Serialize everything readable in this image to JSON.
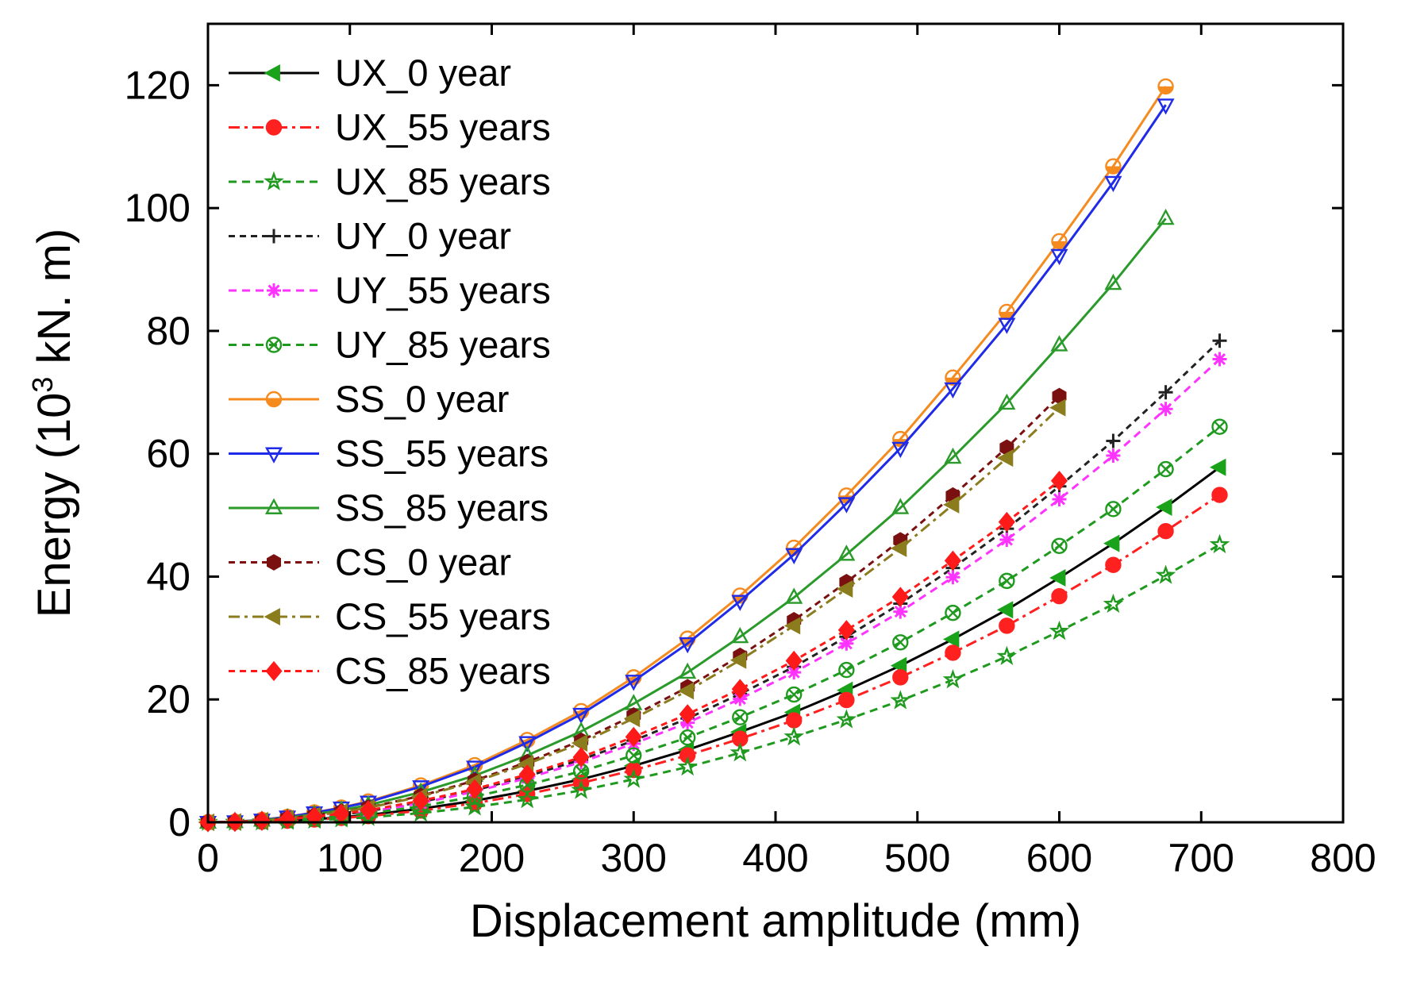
{
  "chart_data": {
    "type": "line",
    "xlabel": "Displacement amplitude (mm)",
    "ylabel_main": "Energy (10",
    "ylabel_sup": "3",
    "ylabel_tail": " kN. m)",
    "xlim": [
      0,
      800
    ],
    "ylim": [
      0,
      130
    ],
    "xticks": [
      0,
      100,
      200,
      300,
      400,
      500,
      600,
      700,
      800
    ],
    "yticks": [
      0,
      20,
      40,
      60,
      80,
      100,
      120
    ],
    "xtick_labels": [
      "0",
      "100",
      "200",
      "300",
      "400",
      "500",
      "600",
      "700",
      "800"
    ],
    "ytick_labels": [
      "0",
      "20",
      "40",
      "60",
      "80",
      "100",
      "120"
    ],
    "legend_position": "top-left",
    "grid": false,
    "series": [
      {
        "name": "UX_0 year",
        "color": "#000000",
        "marker": "triangle-left",
        "markerColor": "#1aa31a",
        "dash": "",
        "markerFill": true,
        "x": [
          0,
          19,
          38,
          56,
          75,
          94,
          113,
          150,
          188,
          225,
          263,
          300,
          338,
          375,
          413,
          450,
          488,
          525,
          563,
          600,
          638,
          675,
          713
        ],
        "y": [
          0,
          0.03,
          0.12,
          0.3,
          0.5,
          0.8,
          1.2,
          2.2,
          3.5,
          5.1,
          7.0,
          9.2,
          11.8,
          14.7,
          17.9,
          21.5,
          25.5,
          29.8,
          34.6,
          39.8,
          45.4,
          51.3,
          57.8
        ]
      },
      {
        "name": "UX_55 years",
        "color": "#ff2020",
        "marker": "circle",
        "markerColor": "#ff2020",
        "dash": "14,6,4,6",
        "markerFill": true,
        "x": [
          0,
          19,
          38,
          56,
          75,
          94,
          113,
          150,
          188,
          225,
          263,
          300,
          338,
          375,
          413,
          450,
          488,
          525,
          563,
          600,
          638,
          675,
          713
        ],
        "y": [
          0,
          0.03,
          0.1,
          0.25,
          0.45,
          0.7,
          1.0,
          1.9,
          3.1,
          4.6,
          6.4,
          8.5,
          10.9,
          13.6,
          16.6,
          19.9,
          23.6,
          27.6,
          32.0,
          36.8,
          41.9,
          47.4,
          53.3
        ]
      },
      {
        "name": "UX_85 years",
        "color": "#1f9a1f",
        "marker": "star",
        "markerColor": "#1f9a1f",
        "dash": "10,7",
        "markerFill": false,
        "x": [
          0,
          19,
          38,
          56,
          75,
          94,
          113,
          150,
          188,
          225,
          263,
          300,
          338,
          375,
          413,
          450,
          488,
          525,
          563,
          600,
          638,
          675,
          713
        ],
        "y": [
          0,
          0.02,
          0.08,
          0.2,
          0.36,
          0.56,
          0.8,
          1.5,
          2.5,
          3.7,
          5.2,
          7.0,
          9.0,
          11.3,
          13.9,
          16.7,
          19.8,
          23.2,
          27.0,
          31.1,
          35.5,
          40.2,
          45.2
        ]
      },
      {
        "name": "UY_0 year",
        "color": "#222222",
        "marker": "plus",
        "markerColor": "#222222",
        "dash": "8,6",
        "markerFill": false,
        "x": [
          0,
          19,
          38,
          56,
          75,
          94,
          113,
          150,
          188,
          225,
          263,
          300,
          338,
          375,
          413,
          450,
          488,
          525,
          563,
          600,
          638,
          675,
          713
        ],
        "y": [
          0,
          0.05,
          0.2,
          0.45,
          0.8,
          1.25,
          1.8,
          3.3,
          5.2,
          7.5,
          10.2,
          13.3,
          16.9,
          20.9,
          25.3,
          30.2,
          35.6,
          41.4,
          47.8,
          54.7,
          62.1,
          70.0,
          78.4
        ]
      },
      {
        "name": "UY_55 years",
        "color": "#ff33ff",
        "marker": "asterisk",
        "markerColor": "#ff33ff",
        "dash": "10,7",
        "markerFill": false,
        "x": [
          0,
          19,
          38,
          56,
          75,
          94,
          113,
          150,
          188,
          225,
          263,
          300,
          338,
          375,
          413,
          450,
          488,
          525,
          563,
          600,
          638,
          675,
          713
        ],
        "y": [
          0,
          0.05,
          0.19,
          0.43,
          0.76,
          1.2,
          1.7,
          3.1,
          5.0,
          7.2,
          9.8,
          12.8,
          16.2,
          20.1,
          24.4,
          29.1,
          34.3,
          39.9,
          46.0,
          52.6,
          59.7,
          67.3,
          75.4
        ]
      },
      {
        "name": "UY_85 years",
        "color": "#1f9a1f",
        "marker": "circle-x",
        "markerColor": "#1f9a1f",
        "dash": "10,7",
        "markerFill": false,
        "x": [
          0,
          19,
          38,
          56,
          75,
          94,
          113,
          150,
          188,
          225,
          263,
          300,
          338,
          375,
          413,
          450,
          488,
          525,
          563,
          600,
          638,
          675,
          713
        ],
        "y": [
          0,
          0.04,
          0.16,
          0.36,
          0.64,
          1.0,
          1.45,
          2.6,
          4.2,
          6.1,
          8.3,
          10.9,
          13.8,
          17.1,
          20.8,
          24.8,
          29.3,
          34.1,
          39.3,
          45.0,
          51.0,
          57.5,
          64.4
        ]
      },
      {
        "name": "SS_0 year",
        "color": "#f58a1f",
        "marker": "circle-half",
        "markerColor": "#f58a1f",
        "dash": "",
        "markerFill": false,
        "x": [
          0,
          19,
          38,
          56,
          75,
          94,
          113,
          150,
          188,
          225,
          263,
          300,
          338,
          375,
          413,
          450,
          488,
          525,
          563,
          600,
          638,
          675
        ],
        "y": [
          0,
          0.1,
          0.4,
          0.9,
          1.6,
          2.4,
          3.4,
          6.0,
          9.3,
          13.4,
          18.1,
          23.6,
          29.9,
          36.9,
          44.7,
          53.2,
          62.4,
          72.4,
          83.1,
          94.6,
          106.8,
          119.8
        ]
      },
      {
        "name": "SS_55 years",
        "color": "#1f2be8",
        "marker": "triangle-down",
        "markerColor": "#1f2be8",
        "dash": "",
        "markerFill": false,
        "x": [
          0,
          19,
          38,
          56,
          75,
          94,
          113,
          150,
          188,
          225,
          263,
          300,
          338,
          375,
          413,
          450,
          488,
          525,
          563,
          600,
          638,
          675
        ],
        "y": [
          0,
          0.1,
          0.38,
          0.88,
          1.55,
          2.35,
          3.3,
          5.8,
          9.0,
          13.0,
          17.6,
          23.0,
          29.1,
          36.0,
          43.6,
          51.9,
          60.9,
          70.6,
          81.1,
          92.3,
          104.2,
          116.8
        ]
      },
      {
        "name": "SS_85 years",
        "color": "#2a9a2a",
        "marker": "triangle-up",
        "markerColor": "#2a9a2a",
        "dash": "",
        "markerFill": false,
        "x": [
          0,
          19,
          38,
          56,
          75,
          94,
          113,
          150,
          188,
          225,
          263,
          300,
          338,
          375,
          413,
          450,
          488,
          525,
          563,
          600,
          638,
          675
        ],
        "y": [
          0,
          0.08,
          0.32,
          0.73,
          1.3,
          1.98,
          2.8,
          4.9,
          7.6,
          10.9,
          14.8,
          19.3,
          24.4,
          30.2,
          36.6,
          43.6,
          51.2,
          59.4,
          68.2,
          77.7,
          87.7,
          98.3
        ]
      },
      {
        "name": "CS_0 year",
        "color": "#7a1010",
        "marker": "hexagon",
        "markerColor": "#7a1010",
        "dash": "8,6",
        "markerFill": true,
        "x": [
          0,
          19,
          38,
          56,
          75,
          94,
          113,
          150,
          188,
          225,
          263,
          300,
          338,
          375,
          413,
          450,
          488,
          525,
          563,
          600
        ],
        "y": [
          0,
          0.07,
          0.28,
          0.63,
          1.12,
          1.72,
          2.4,
          4.3,
          6.8,
          9.8,
          13.3,
          17.4,
          22.0,
          27.1,
          32.9,
          39.1,
          45.9,
          53.2,
          61.0,
          69.4
        ]
      },
      {
        "name": "CS_55 years",
        "color": "#8b7d1e",
        "marker": "triangle-left",
        "markerColor": "#8b7d1e",
        "dash": "14,6,4,6",
        "markerFill": true,
        "x": [
          0,
          19,
          38,
          56,
          75,
          94,
          113,
          150,
          188,
          225,
          263,
          300,
          338,
          375,
          413,
          450,
          488,
          525,
          563,
          600
        ],
        "y": [
          0,
          0.07,
          0.27,
          0.61,
          1.09,
          1.68,
          2.35,
          4.2,
          6.6,
          9.5,
          12.9,
          16.9,
          21.4,
          26.4,
          32.0,
          38.0,
          44.6,
          51.7,
          59.3,
          67.5
        ]
      },
      {
        "name": "CS_85 years",
        "color": "#ff1a1a",
        "marker": "diamond",
        "markerColor": "#ff1a1a",
        "dash": "8,6",
        "markerFill": true,
        "x": [
          0,
          19,
          38,
          56,
          75,
          94,
          113,
          150,
          188,
          225,
          263,
          300,
          338,
          375,
          413,
          450,
          488,
          525,
          563,
          600
        ],
        "y": [
          0,
          0.06,
          0.23,
          0.52,
          0.91,
          1.4,
          1.95,
          3.5,
          5.4,
          7.8,
          10.6,
          13.9,
          17.6,
          21.7,
          26.3,
          31.3,
          36.7,
          42.6,
          48.9,
          55.6
        ]
      }
    ]
  }
}
